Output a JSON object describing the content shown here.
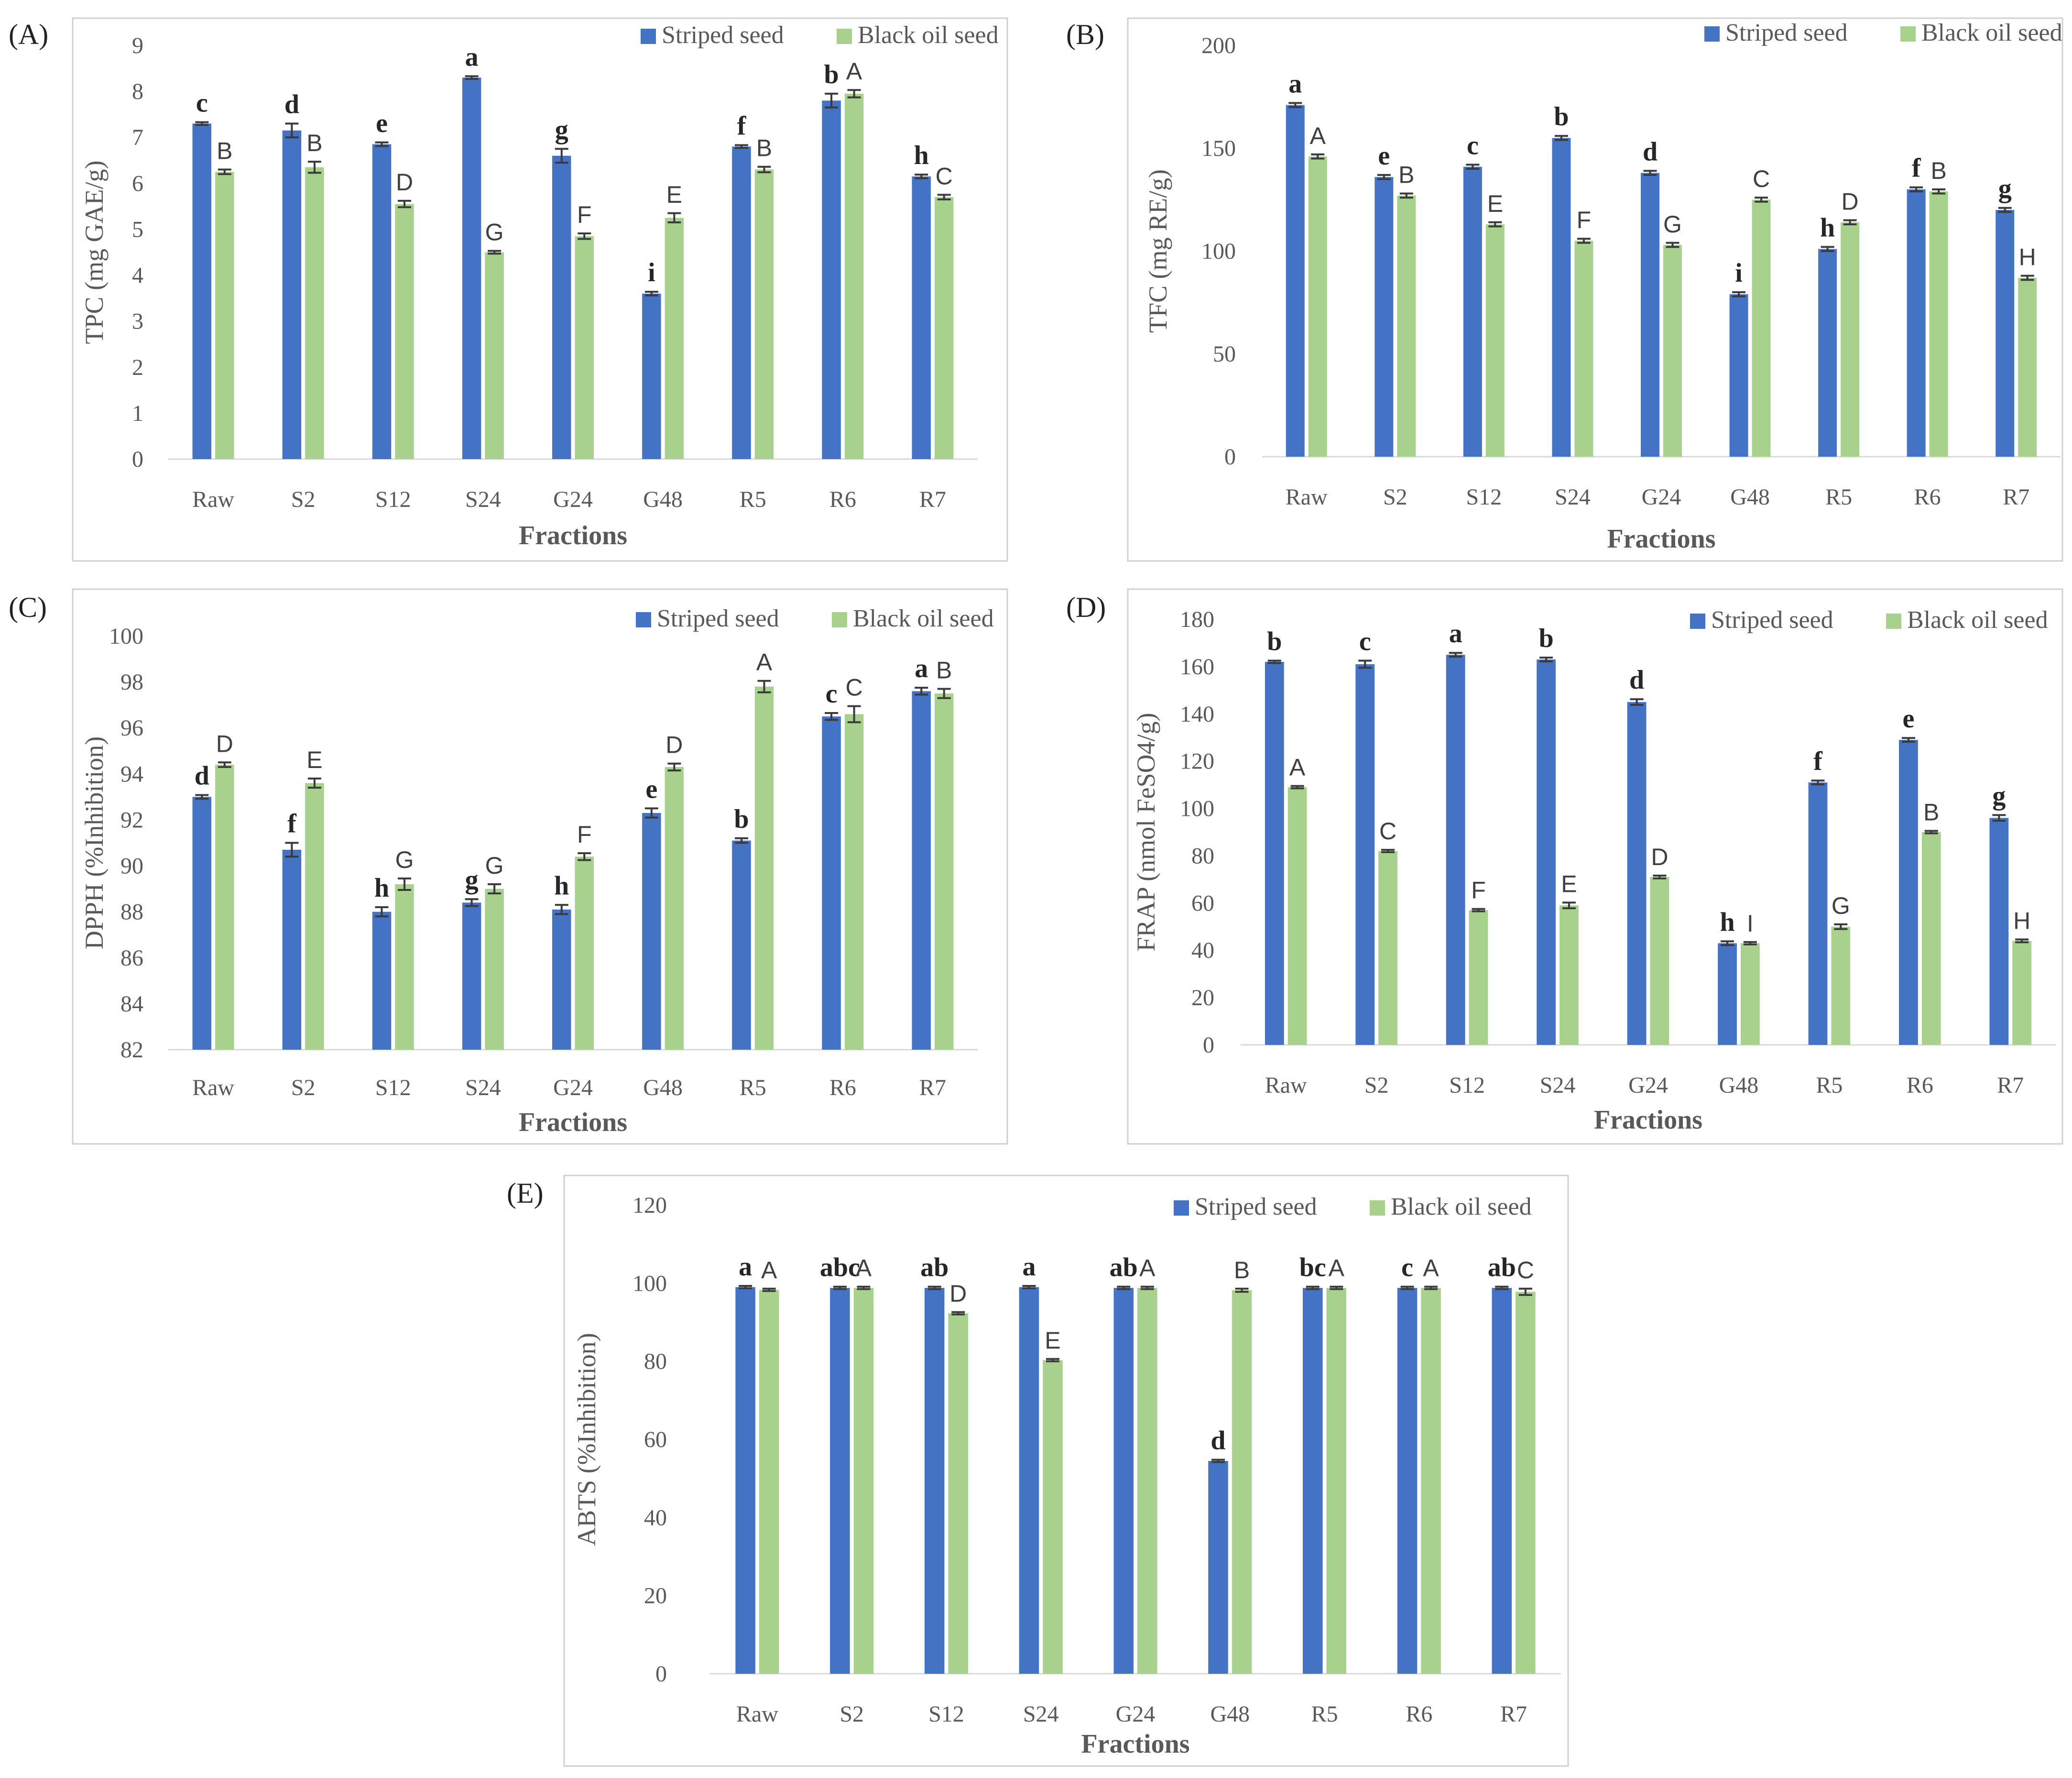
{
  "colors": {
    "striped": "#4472C4",
    "black_oil": "#A9D18E"
  },
  "chart_data": [
    {
      "panel": "(A)",
      "type": "bar",
      "title": "",
      "xlabel": "Fractions",
      "ylabel": "TPC (mg GAE/g)",
      "ylim": [
        0,
        9
      ],
      "yticks": [
        "0",
        "1",
        "2",
        "3",
        "4",
        "5",
        "6",
        "7",
        "8",
        "9"
      ],
      "categories": [
        "Raw",
        "S2",
        "S12",
        "S24",
        "G24",
        "G48",
        "R5",
        "R6",
        "R7"
      ],
      "legend": {
        "position": "top-right",
        "entries": [
          "Striped seed",
          "Black oil seed"
        ]
      },
      "series": [
        {
          "name": "Striped seed",
          "color": "#4472C4",
          "values": [
            7.3,
            7.15,
            6.85,
            8.3,
            6.6,
            3.6,
            6.8,
            7.8,
            6.15
          ],
          "errors": [
            0.03,
            0.15,
            0.04,
            0.03,
            0.15,
            0.04,
            0.03,
            0.15,
            0.04
          ],
          "labels": [
            "c",
            "d",
            "e",
            "a",
            "g",
            "i",
            "f",
            "b",
            "h"
          ]
        },
        {
          "name": "Black oil seed",
          "color": "#A9D18E",
          "values": [
            6.25,
            6.35,
            5.55,
            4.5,
            4.85,
            5.25,
            6.3,
            7.95,
            5.7
          ],
          "errors": [
            0.05,
            0.12,
            0.07,
            0.03,
            0.06,
            0.1,
            0.06,
            0.08,
            0.05
          ],
          "labels": [
            "B",
            "B",
            "D",
            "G",
            "F",
            "E",
            "B",
            "A",
            "C"
          ]
        }
      ]
    },
    {
      "panel": "(B)",
      "type": "bar",
      "title": "",
      "xlabel": "Fractions",
      "ylabel": "TFC (mg RE/g)",
      "ylim": [
        0,
        200
      ],
      "yticks": [
        "0",
        "50",
        "100",
        "150",
        "200"
      ],
      "categories": [
        "Raw",
        "S2",
        "S12",
        "S24",
        "G24",
        "G48",
        "R5",
        "R6",
        "R7"
      ],
      "legend": {
        "position": "top-right",
        "entries": [
          "Striped seed",
          "Black oil seed"
        ]
      },
      "series": [
        {
          "name": "Striped seed",
          "color": "#4472C4",
          "values": [
            171,
            136,
            141,
            155,
            138,
            79,
            101,
            130,
            120
          ],
          "errors": [
            1,
            1,
            1,
            1,
            1,
            1,
            1,
            1,
            1
          ],
          "labels": [
            "a",
            "e",
            "c",
            "b",
            "d",
            "i",
            "h",
            "f",
            "g"
          ]
        },
        {
          "name": "Black oil seed",
          "color": "#A9D18E",
          "values": [
            146,
            127,
            113,
            105,
            103,
            125,
            114,
            129,
            87
          ],
          "errors": [
            1,
            1,
            1,
            1,
            1,
            1,
            1,
            1,
            1
          ],
          "labels": [
            "A",
            "B",
            "E",
            "F",
            "G",
            "C",
            "D",
            "B",
            "H"
          ]
        }
      ]
    },
    {
      "panel": "(C)",
      "type": "bar",
      "title": "",
      "xlabel": "Fractions",
      "ylabel": "DPPH (%Inhibition)",
      "ylim": [
        82,
        100
      ],
      "yticks": [
        "82",
        "84",
        "86",
        "88",
        "90",
        "92",
        "94",
        "96",
        "98",
        "100"
      ],
      "categories": [
        "Raw",
        "S2",
        "S12",
        "S24",
        "G24",
        "G48",
        "R5",
        "R6",
        "R7"
      ],
      "legend": {
        "position": "top-right",
        "entries": [
          "Striped seed",
          "Black oil seed"
        ]
      },
      "series": [
        {
          "name": "Striped seed",
          "color": "#4472C4",
          "values": [
            93.0,
            90.7,
            88.0,
            88.4,
            88.1,
            92.3,
            91.1,
            96.5,
            97.6
          ],
          "errors": [
            0.08,
            0.3,
            0.2,
            0.15,
            0.2,
            0.2,
            0.1,
            0.15,
            0.15
          ],
          "labels": [
            "d",
            "f",
            "h",
            "g",
            "h",
            "e",
            "b",
            "c",
            "a"
          ]
        },
        {
          "name": "Black oil seed",
          "color": "#A9D18E",
          "values": [
            94.4,
            93.6,
            89.2,
            89.0,
            90.4,
            94.3,
            97.8,
            96.6,
            97.5
          ],
          "errors": [
            0.1,
            0.2,
            0.25,
            0.2,
            0.15,
            0.15,
            0.25,
            0.35,
            0.2
          ],
          "labels": [
            "D",
            "E",
            "G",
            "G",
            "F",
            "D",
            "A",
            "C",
            "B"
          ]
        }
      ]
    },
    {
      "panel": "(D)",
      "type": "bar",
      "title": "",
      "xlabel": "Fractions",
      "ylabel": "FRAP (nmol FeSO4/g)",
      "ylim": [
        0,
        180
      ],
      "yticks": [
        "0",
        "20",
        "40",
        "60",
        "80",
        "100",
        "120",
        "140",
        "160",
        "180"
      ],
      "categories": [
        "Raw",
        "S2",
        "S12",
        "S24",
        "G24",
        "G48",
        "R5",
        "R6",
        "R7"
      ],
      "legend": {
        "position": "top-right",
        "entries": [
          "Striped seed",
          "Black oil seed"
        ]
      },
      "series": [
        {
          "name": "Striped seed",
          "color": "#4472C4",
          "values": [
            162,
            161,
            165,
            163,
            145,
            43,
            111,
            129,
            96
          ],
          "errors": [
            0.5,
            1.5,
            0.8,
            0.8,
            1.2,
            0.8,
            0.8,
            0.8,
            1.2
          ],
          "labels": [
            "b",
            "c",
            "a",
            "b",
            "d",
            "h",
            "f",
            "e",
            "g"
          ]
        },
        {
          "name": "Black oil seed",
          "color": "#A9D18E",
          "values": [
            109,
            82,
            57,
            59,
            71,
            43,
            50,
            90,
            44
          ],
          "errors": [
            0.5,
            0.5,
            0.5,
            1.2,
            0.6,
            0.5,
            1.0,
            0.5,
            0.6
          ],
          "labels": [
            "A",
            "C",
            "F",
            "E",
            "D",
            "I",
            "G",
            "B",
            "H"
          ]
        }
      ]
    },
    {
      "panel": "(E)",
      "type": "bar",
      "title": "",
      "xlabel": "Fractions",
      "ylabel": "ABTS (%Inhibition)",
      "ylim": [
        0,
        120
      ],
      "yticks": [
        "0",
        "20",
        "40",
        "60",
        "80",
        "100",
        "120"
      ],
      "categories": [
        "Raw",
        "S2",
        "S12",
        "S24",
        "G24",
        "G48",
        "R5",
        "R6",
        "R7"
      ],
      "legend": {
        "position": "top-right",
        "entries": [
          "Striped seed",
          "Black oil seed"
        ]
      },
      "series": [
        {
          "name": "Striped seed",
          "color": "#4472C4",
          "values": [
            99,
            98.8,
            98.8,
            99,
            98.8,
            54.5,
            98.8,
            98.8,
            98.8
          ],
          "errors": [
            0.3,
            0.3,
            0.3,
            0.3,
            0.3,
            0.3,
            0.3,
            0.3,
            0.3
          ],
          "labels": [
            "a",
            "abc",
            "ab",
            "a",
            "ab",
            "d",
            "bc",
            "c",
            "ab"
          ]
        },
        {
          "name": "Black oil seed",
          "color": "#A9D18E",
          "values": [
            98.3,
            98.8,
            92.3,
            80.3,
            98.8,
            98.2,
            98.8,
            98.8,
            97.8
          ],
          "errors": [
            0.3,
            0.3,
            0.3,
            0.3,
            0.3,
            0.4,
            0.3,
            0.3,
            0.8
          ],
          "labels": [
            "A",
            "A",
            "D",
            "E",
            "A",
            "B",
            "A",
            "A",
            "C"
          ]
        }
      ]
    }
  ]
}
